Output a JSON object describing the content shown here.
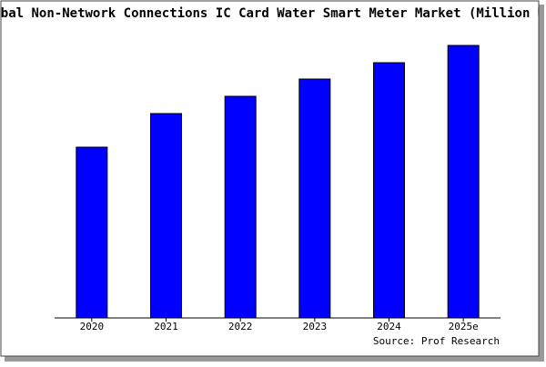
{
  "chart_data": {
    "type": "bar",
    "title": "Global Non-Network Connections IC Card Water Smart Meter Market (Million USD)",
    "source": "Source: Prof Research",
    "categories": [
      "2020",
      "2021",
      "2022",
      "2023",
      "2024",
      "2025e"
    ],
    "values": [
      188,
      225,
      244,
      263,
      281,
      300
    ],
    "color": "#0000ff",
    "ylim": [
      0,
      302
    ]
  }
}
